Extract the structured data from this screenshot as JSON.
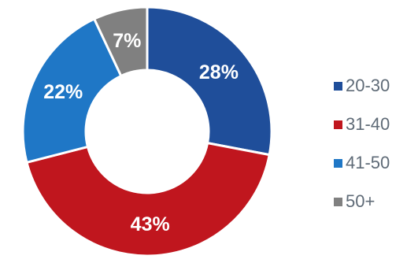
{
  "chart_data": {
    "type": "pie",
    "donut": true,
    "slices": [
      {
        "label": "20-30",
        "value": 28,
        "display": "28%",
        "color": "#1f4e9a"
      },
      {
        "label": "31-40",
        "value": 43,
        "display": "43%",
        "color": "#c0161e"
      },
      {
        "label": "41-50",
        "value": 22,
        "display": "22%",
        "color": "#1f77c6"
      },
      {
        "label": "50+",
        "value": 7,
        "display": "7%",
        "color": "#808080"
      }
    ],
    "legend_position": "right"
  }
}
